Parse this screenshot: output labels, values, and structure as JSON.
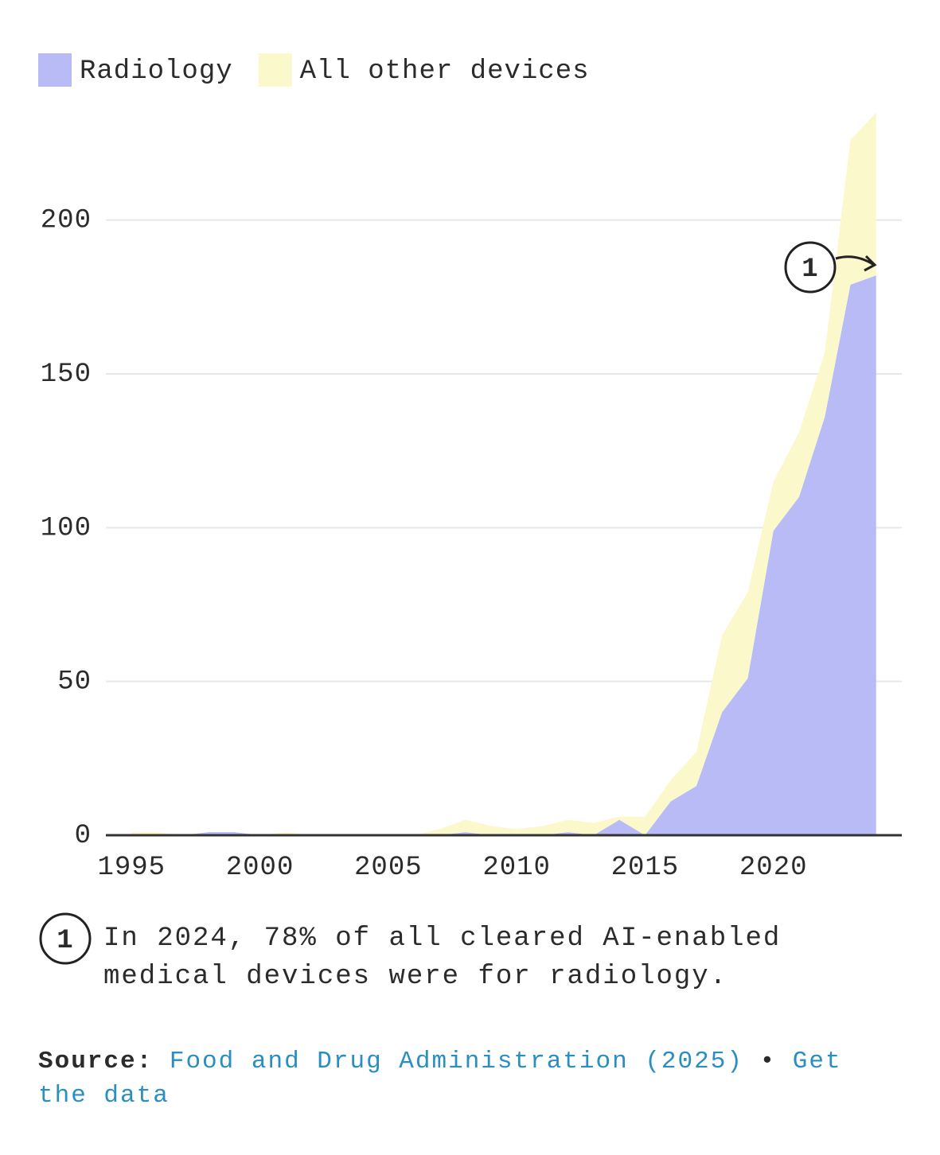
{
  "chart_data": {
    "type": "area",
    "stacked": true,
    "x": [
      1995,
      1996,
      1997,
      1998,
      1999,
      2000,
      2001,
      2002,
      2003,
      2004,
      2005,
      2006,
      2007,
      2008,
      2009,
      2010,
      2011,
      2012,
      2013,
      2014,
      2015,
      2016,
      2017,
      2018,
      2019,
      2020,
      2021,
      2022,
      2023,
      2024
    ],
    "series": [
      {
        "name": "Radiology",
        "color": "#b8bbf6",
        "values": [
          0,
          0,
          0,
          1,
          1,
          0,
          0,
          0,
          0,
          0,
          0,
          0,
          0,
          1,
          0,
          0,
          0,
          1,
          0,
          5,
          0,
          11,
          16,
          40,
          51,
          99,
          110,
          136,
          179,
          182
        ]
      },
      {
        "name": "All other devices",
        "color": "#fbf8cc",
        "values": [
          1,
          1,
          0,
          0,
          0,
          0,
          1,
          0,
          0,
          0,
          0,
          0,
          2,
          4,
          3,
          2,
          3,
          4,
          4,
          1,
          6,
          7,
          11,
          25,
          28,
          16,
          21,
          21,
          47,
          53
        ]
      }
    ],
    "xlim": [
      1994,
      2025
    ],
    "ylim": [
      0,
      240
    ],
    "xticks": [
      1995,
      2000,
      2005,
      2010,
      2015,
      2020
    ],
    "yticks": [
      0,
      50,
      100,
      150,
      200
    ],
    "grid": true,
    "legend": "top-left",
    "annotation": {
      "marker": "1"
    },
    "footnote": {
      "marker": "1",
      "text": "In 2024, 78% of all cleared AI-enabled medical devices were for radiology."
    },
    "source": {
      "label": "Source:",
      "text": "Food and Drug Administration (2025)",
      "separator": "•",
      "link": "Get the data"
    }
  }
}
